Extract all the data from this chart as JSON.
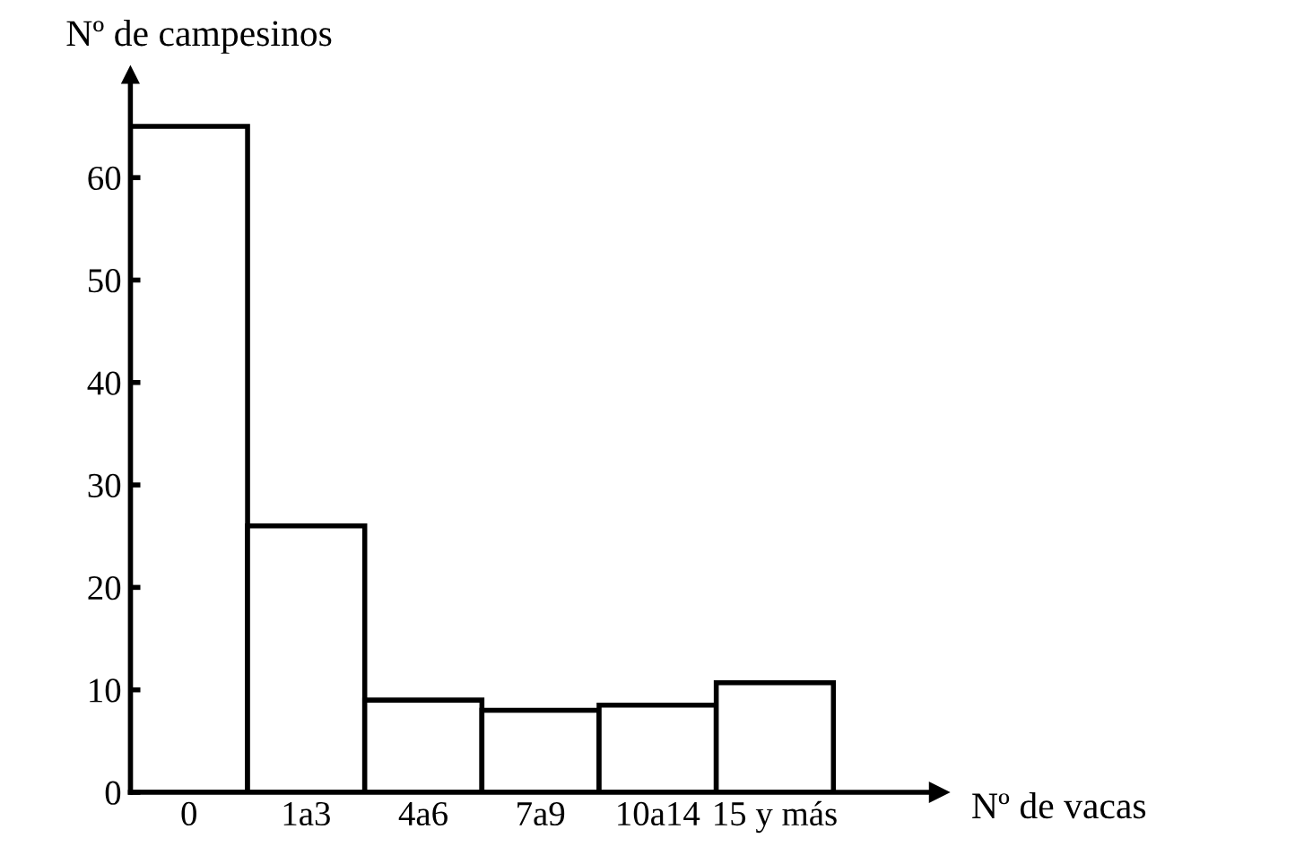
{
  "chart_data": {
    "type": "bar",
    "ylabel": "Nº de campesinos",
    "xlabel": "Nº de vacas",
    "categories": [
      "0",
      "1a3",
      "4a6",
      "7a9",
      "10a14",
      "15 y más"
    ],
    "values": [
      65,
      26,
      9,
      8,
      8.5,
      10.7
    ],
    "color": "#ffffff",
    "ylim": [
      0,
      70
    ],
    "yticks": [
      0,
      10,
      20,
      30,
      40,
      50,
      60
    ],
    "grid": false,
    "legend": false
  }
}
